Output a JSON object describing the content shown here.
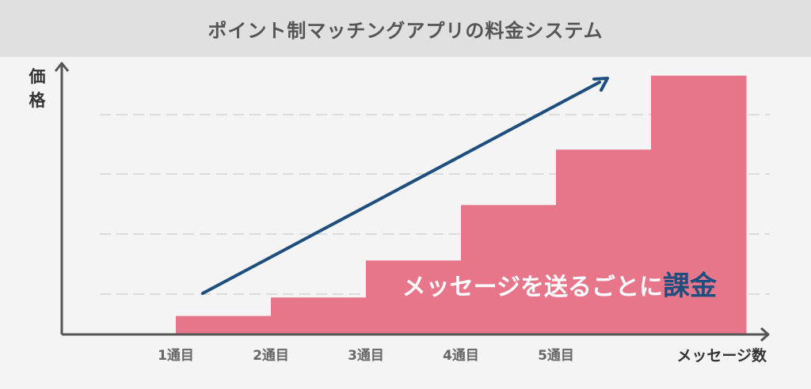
{
  "title": "ポイント制マッチングアプリの料金システム",
  "colors": {
    "bar": "#e8768a",
    "arrow": "#1d4e7e",
    "axis": "#555555",
    "grid": "#dcdcdc",
    "highlight": "#1d4e7e",
    "overlay_text": "#ffffff"
  },
  "annotation": {
    "main_text": "メッセージを送るごとに",
    "highlight_text": "課金"
  },
  "chart_data": {
    "type": "bar",
    "title": "ポイント制マッチングアプリの料金システム",
    "xlabel": "メッセージ数",
    "ylabel": "価格",
    "categories": [
      "1通目",
      "2通目",
      "3通目",
      "4通目",
      "5通目",
      ""
    ],
    "values": [
      1,
      2,
      4,
      7,
      10,
      14
    ],
    "ylim": [
      0,
      14.5
    ],
    "grid": true,
    "trend_arrow": true
  }
}
